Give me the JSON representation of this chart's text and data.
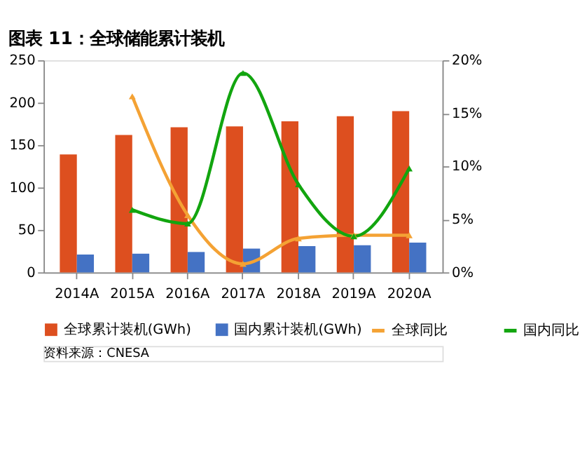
{
  "chart_data": {
    "type": "bar",
    "title": "图表 11：全球储能累计装机",
    "categories": [
      "2014A",
      "2015A",
      "2016A",
      "2017A",
      "2018A",
      "2019A",
      "2020A"
    ],
    "series": [
      {
        "name": "全球累计装机(GWh)",
        "color": "#dd4f1f",
        "values": [
          139,
          162,
          171,
          172,
          178,
          184,
          190
        ]
      },
      {
        "name": "国内累计装机(GWh)",
        "color": "#4472c4",
        "values": [
          21,
          22,
          24,
          28,
          31,
          32,
          35
        ]
      },
      {
        "name": "全球同比",
        "type": "line",
        "axis": "y2",
        "color": "#f4a234",
        "values": [
          null,
          16.6,
          5.4,
          0.8,
          3.2,
          3.5,
          3.5
        ]
      },
      {
        "name": "国内同比",
        "type": "line",
        "axis": "y2",
        "color": "#12a50f",
        "values": [
          null,
          5.9,
          4.6,
          18.8,
          8.3,
          3.4,
          9.8
        ]
      }
    ],
    "ylim": [
      0,
      250
    ],
    "yticks": [
      0,
      50,
      100,
      150,
      200,
      250
    ],
    "y2lim": [
      0,
      20
    ],
    "y2ticks": [
      {
        "value": 0,
        "label": "0%"
      },
      {
        "value": 5,
        "label": "5%"
      },
      {
        "value": 10,
        "label": "10%"
      },
      {
        "value": 15,
        "label": "15%"
      },
      {
        "value": 20,
        "label": "20%"
      }
    ],
    "marker": "triangle",
    "legend": "bottom",
    "grid": false,
    "annotations": [
      "资料来源：CNESA"
    ]
  }
}
